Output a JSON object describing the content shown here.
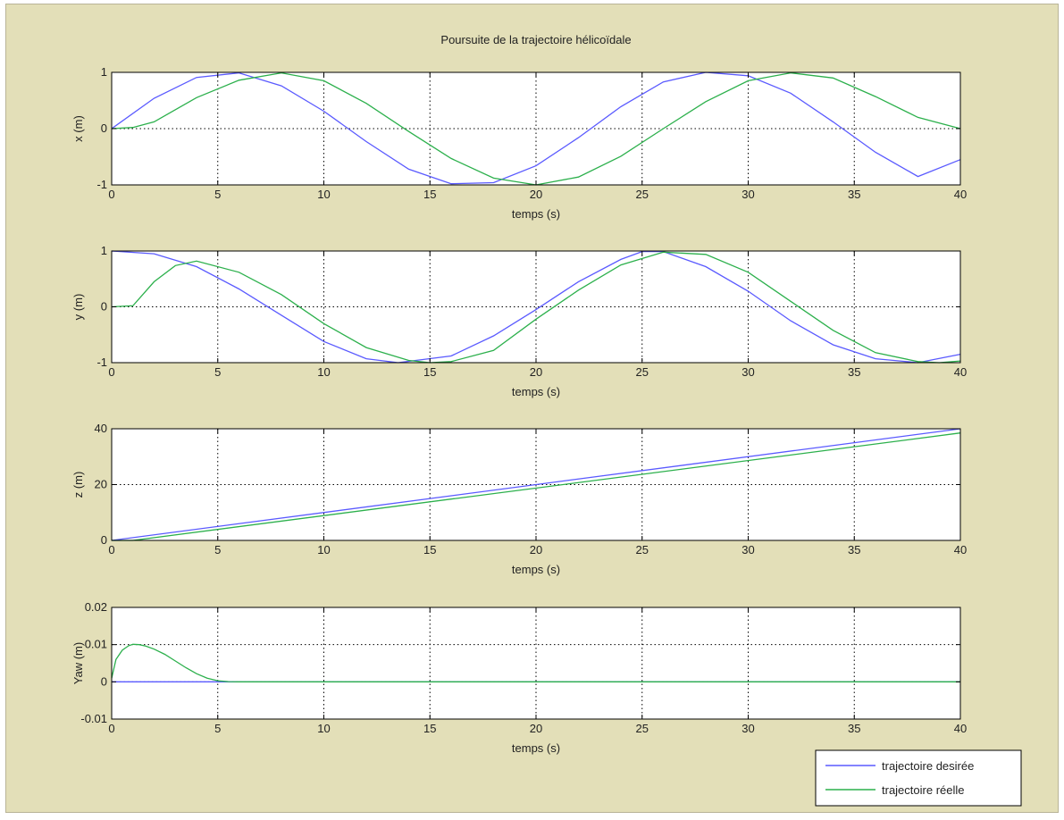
{
  "chart_data": [
    {
      "type": "line",
      "title": "Poursuite de la trajectoire hélicoïdale",
      "xlabel": "temps (s)",
      "ylabel": "x (m)",
      "xlim": [
        0,
        40
      ],
      "ylim": [
        -1,
        1
      ],
      "xticks": [
        "0",
        "5",
        "10",
        "15",
        "20",
        "25",
        "30",
        "35",
        "40"
      ],
      "yticks": [
        "-1",
        "0",
        "1"
      ],
      "grid": true,
      "series": [
        {
          "name": "trajectoire desirée",
          "color": "#5a5aff",
          "x": [
            0,
            2,
            4,
            6,
            8,
            10,
            12,
            14,
            16,
            18,
            20,
            22,
            24,
            26,
            28,
            30,
            32,
            34,
            36,
            38,
            40
          ],
          "y": [
            0,
            0.54,
            0.91,
            0.99,
            0.76,
            0.31,
            -0.23,
            -0.72,
            -0.98,
            -0.96,
            -0.66,
            -0.16,
            0.39,
            0.83,
            1.0,
            0.94,
            0.63,
            0.12,
            -0.42,
            -0.85,
            -0.55
          ]
        },
        {
          "name": "trajectoire réelle",
          "color": "#2cb04c",
          "x": [
            0,
            1,
            2,
            4,
            6,
            8,
            10,
            12,
            14,
            16,
            18,
            20,
            22,
            24,
            26,
            28,
            30,
            32,
            34,
            36,
            38,
            40
          ],
          "y": [
            0,
            0.02,
            0.12,
            0.55,
            0.86,
            0.99,
            0.85,
            0.45,
            -0.05,
            -0.53,
            -0.88,
            -1.0,
            -0.86,
            -0.49,
            0.0,
            0.48,
            0.85,
            0.99,
            0.9,
            0.57,
            0.2,
            0.0
          ]
        }
      ]
    },
    {
      "type": "line",
      "xlabel": "temps (s)",
      "ylabel": "y (m)",
      "xlim": [
        0,
        40
      ],
      "ylim": [
        -1,
        1
      ],
      "xticks": [
        "0",
        "5",
        "10",
        "15",
        "20",
        "25",
        "30",
        "35",
        "40"
      ],
      "yticks": [
        "-1",
        "0",
        "1"
      ],
      "grid": true,
      "series": [
        {
          "name": "trajectoire desirée",
          "color": "#5a5aff",
          "x": [
            0,
            2,
            4,
            6,
            8,
            10,
            12,
            13.5,
            16,
            18,
            20,
            22,
            24,
            25,
            26,
            28,
            30,
            32,
            34,
            36,
            38,
            40
          ],
          "y": [
            1,
            0.95,
            0.72,
            0.32,
            -0.15,
            -0.62,
            -0.93,
            -1.0,
            -0.88,
            -0.52,
            -0.05,
            0.45,
            0.85,
            0.99,
            0.99,
            0.72,
            0.28,
            -0.25,
            -0.68,
            -0.93,
            -1.0,
            -0.85
          ]
        },
        {
          "name": "trajectoire réelle",
          "color": "#2cb04c",
          "x": [
            0,
            1,
            2,
            3,
            4,
            6,
            8,
            10,
            12,
            14,
            15,
            16,
            18,
            20,
            22,
            24,
            26,
            28,
            30,
            32,
            34,
            36,
            38,
            39,
            40
          ],
          "y": [
            0,
            0.02,
            0.45,
            0.74,
            0.82,
            0.62,
            0.22,
            -0.3,
            -0.73,
            -0.96,
            -1.0,
            -0.98,
            -0.78,
            -0.22,
            0.3,
            0.75,
            0.98,
            0.94,
            0.62,
            0.1,
            -0.42,
            -0.82,
            -0.98,
            -1.0,
            -0.97
          ]
        }
      ]
    },
    {
      "type": "line",
      "xlabel": "temps (s)",
      "ylabel": "z (m)",
      "xlim": [
        0,
        40
      ],
      "ylim": [
        0,
        40
      ],
      "xticks": [
        "0",
        "5",
        "10",
        "15",
        "20",
        "25",
        "30",
        "35",
        "40"
      ],
      "yticks": [
        "0",
        "20",
        "40"
      ],
      "grid": true,
      "series": [
        {
          "name": "trajectoire desirée",
          "color": "#5a5aff",
          "x": [
            0,
            40
          ],
          "y": [
            0,
            40
          ]
        },
        {
          "name": "trajectoire réelle",
          "color": "#2cb04c",
          "x": [
            0,
            1,
            40
          ],
          "y": [
            0,
            0,
            38.5
          ]
        }
      ]
    },
    {
      "type": "line",
      "xlabel": "temps (s)",
      "ylabel": "Yaw (m)",
      "xlim": [
        0,
        40
      ],
      "ylim": [
        -0.01,
        0.02
      ],
      "xticks": [
        "0",
        "5",
        "10",
        "15",
        "20",
        "25",
        "30",
        "35",
        "40"
      ],
      "yticks": [
        "-0.01",
        "0",
        "0.01",
        "0.02"
      ],
      "grid": true,
      "series": [
        {
          "name": "trajectoire desirée",
          "color": "#5a5aff",
          "x": [
            0,
            40
          ],
          "y": [
            0,
            0
          ]
        },
        {
          "name": "trajectoire réelle",
          "color": "#2cb04c",
          "x": [
            0,
            0.2,
            0.5,
            0.8,
            1.0,
            1.3,
            1.6,
            2.0,
            2.5,
            3.0,
            3.5,
            4.0,
            4.5,
            5.0,
            5.5,
            6.0,
            40
          ],
          "y": [
            0.001,
            0.006,
            0.0085,
            0.0097,
            0.0101,
            0.01,
            0.0096,
            0.0088,
            0.0074,
            0.0056,
            0.0038,
            0.0022,
            0.001,
            0.0003,
            5e-05,
            0,
            0
          ]
        }
      ]
    }
  ],
  "legend": {
    "placement": "bottom-right",
    "entries": [
      {
        "label": "trajectoire desirée",
        "color": "#5a5aff"
      },
      {
        "label": "trajectoire réelle",
        "color": "#2cb04c"
      }
    ]
  }
}
